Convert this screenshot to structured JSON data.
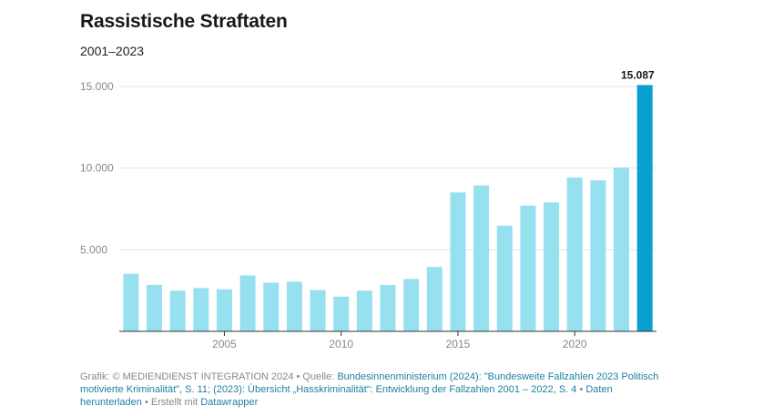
{
  "title": "Rassistische Straftaten",
  "subtitle": "2001–2023",
  "chart_data": {
    "type": "bar",
    "x": [
      2001,
      2002,
      2003,
      2004,
      2005,
      2006,
      2007,
      2008,
      2009,
      2010,
      2011,
      2012,
      2013,
      2014,
      2015,
      2016,
      2017,
      2018,
      2019,
      2020,
      2021,
      2022,
      2023
    ],
    "values": [
      3530,
      2850,
      2490,
      2650,
      2580,
      3430,
      2980,
      3040,
      2530,
      2130,
      2490,
      2840,
      3210,
      3940,
      8510,
      8940,
      6470,
      7700,
      7900,
      9420,
      9250,
      10040,
      15087
    ],
    "xticks": [
      2005,
      2010,
      2015,
      2020
    ],
    "xtick_labels": [
      "2005",
      "2010",
      "2015",
      "2020"
    ],
    "yticks": [
      5000,
      10000,
      15000
    ],
    "ytick_labels": [
      "5.000",
      "10.000",
      "15.000"
    ],
    "ylim": [
      0,
      15000
    ],
    "highlight_label": "15.087",
    "highlight_index": 22,
    "colors": {
      "bar": "#97e0f0",
      "highlight": "#099fd1",
      "grid": "#e5e5e5",
      "axis": "#333333"
    },
    "grid": true
  },
  "footer": {
    "prefix": "Grafik: © MEDIENDIENST INTEGRATION 2024 • Quelle: ",
    "source": "Bundesinnenministerium (2024): \"Bundesweite Fallzahlen 2023 Politisch motivierte Kriminalität\", S. 11; (2023): Übersicht „Hasskriminalität“: Entwicklung der Fallzahlen 2001 – 2022, S. 4",
    "sep": " • ",
    "download": "Daten herunterladen",
    "made_with": " • Erstellt mit ",
    "tool": "Datawrapper"
  }
}
